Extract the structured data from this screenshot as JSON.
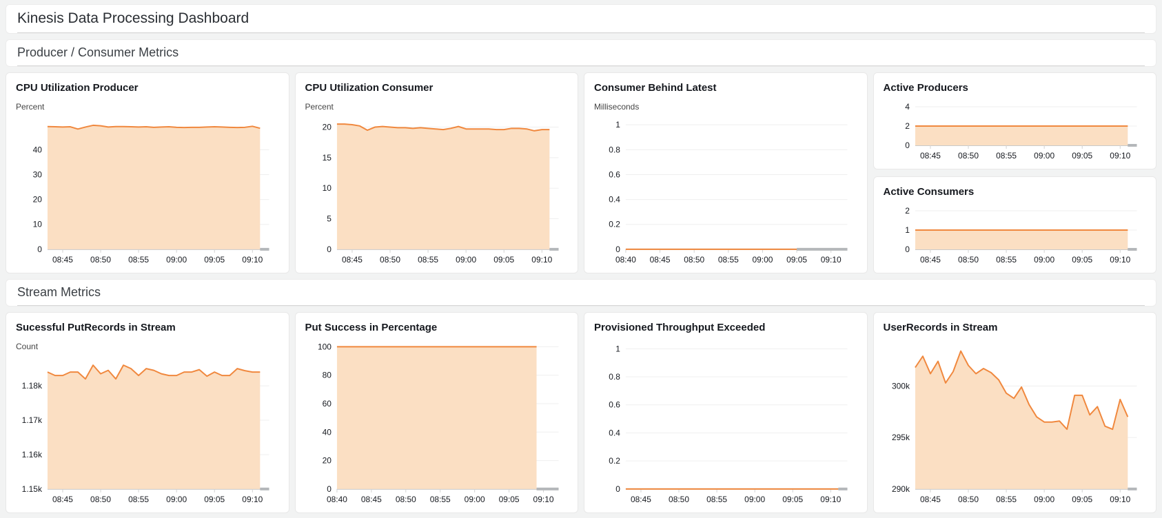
{
  "page": {
    "title": "Kinesis Data Processing Dashboard"
  },
  "sections": {
    "producer_consumer": "Producer / Consumer Metrics",
    "stream": "Stream Metrics"
  },
  "colors": {
    "line": "#f0883e",
    "fill": "#fbdfc3",
    "grid": "#efefef",
    "baseline": "#c9c9c9",
    "axis_end_stub": "#b4b7ba",
    "tick_mark": "#d2d2d2",
    "tick_text": "#16191f"
  },
  "chart_data": [
    {
      "id": "cpu-utilization-producer",
      "type": "area",
      "title": "CPU Utilization Producer",
      "unit": "Percent",
      "ylim": [
        0,
        52.5
      ],
      "yticks": [
        {
          "v": 0,
          "label": "0"
        },
        {
          "v": 10,
          "label": "10"
        },
        {
          "v": 20,
          "label": "20"
        },
        {
          "v": 30,
          "label": "30"
        },
        {
          "v": 40,
          "label": "40"
        }
      ],
      "xlim": [
        43,
        72.2
      ],
      "xticks": [
        {
          "m": 45,
          "label": "08:45"
        },
        {
          "m": 50,
          "label": "08:50"
        },
        {
          "m": 55,
          "label": "08:55"
        },
        {
          "m": 60,
          "label": "09:00"
        },
        {
          "m": 65,
          "label": "09:05"
        },
        {
          "m": 70,
          "label": "09:10"
        }
      ],
      "x_start_min": 43,
      "x_step_min": 1,
      "values": [
        49.3,
        49.2,
        49.1,
        49.2,
        48.3,
        49.1,
        49.8,
        49.6,
        49.1,
        49.3,
        49.3,
        49.2,
        49.1,
        49.2,
        49.0,
        49.1,
        49.2,
        49.0,
        48.9,
        49.0,
        49.0,
        49.1,
        49.2,
        49.1,
        49.0,
        48.9,
        49.0,
        49.4,
        48.6
      ]
    },
    {
      "id": "cpu-utilization-consumer",
      "type": "area",
      "title": "CPU Utilization Consumer",
      "unit": "Percent",
      "ylim": [
        0,
        21.4
      ],
      "yticks": [
        {
          "v": 0,
          "label": "0"
        },
        {
          "v": 5,
          "label": "5"
        },
        {
          "v": 10,
          "label": "10"
        },
        {
          "v": 15,
          "label": "15"
        },
        {
          "v": 20,
          "label": "20"
        }
      ],
      "xlim": [
        43,
        72.2
      ],
      "xticks": [
        {
          "m": 45,
          "label": "08:45"
        },
        {
          "m": 50,
          "label": "08:50"
        },
        {
          "m": 55,
          "label": "08:55"
        },
        {
          "m": 60,
          "label": "09:00"
        },
        {
          "m": 65,
          "label": "09:05"
        },
        {
          "m": 70,
          "label": "09:10"
        }
      ],
      "x_start_min": 43,
      "x_step_min": 1,
      "values": [
        20.5,
        20.5,
        20.4,
        20.2,
        19.5,
        20.0,
        20.1,
        20.0,
        19.9,
        19.9,
        19.8,
        19.9,
        19.8,
        19.7,
        19.6,
        19.8,
        20.1,
        19.7,
        19.7,
        19.7,
        19.7,
        19.6,
        19.6,
        19.8,
        19.8,
        19.7,
        19.4,
        19.6,
        19.6
      ]
    },
    {
      "id": "consumer-behind-latest",
      "type": "area",
      "title": "Consumer Behind Latest",
      "unit": "Milliseconds",
      "ylim": [
        0,
        1.05
      ],
      "yticks": [
        {
          "v": 0,
          "label": "0"
        },
        {
          "v": 0.2,
          "label": "0.2"
        },
        {
          "v": 0.4,
          "label": "0.4"
        },
        {
          "v": 0.6,
          "label": "0.6"
        },
        {
          "v": 0.8,
          "label": "0.8"
        },
        {
          "v": 1,
          "label": "1"
        }
      ],
      "xlim": [
        40,
        72.4
      ],
      "xticks": [
        {
          "m": 40,
          "label": "08:40"
        },
        {
          "m": 45,
          "label": "08:45"
        },
        {
          "m": 50,
          "label": "08:50"
        },
        {
          "m": 55,
          "label": "08:55"
        },
        {
          "m": 60,
          "label": "09:00"
        },
        {
          "m": 65,
          "label": "09:05"
        },
        {
          "m": 70,
          "label": "09:10"
        }
      ],
      "x_start_min": 40,
      "x_step_min": 1,
      "values": [
        0,
        0,
        0,
        0,
        0,
        0,
        0,
        0,
        0,
        0,
        0,
        0,
        0,
        0,
        0,
        0,
        0,
        0,
        0,
        0,
        0,
        0,
        0,
        0,
        0,
        0
      ]
    },
    {
      "id": "active-producers",
      "type": "area",
      "title": "Active Producers",
      "ylim": [
        0,
        4.5
      ],
      "yticks": [
        {
          "v": 0,
          "label": "0"
        },
        {
          "v": 2,
          "label": "2"
        },
        {
          "v": 4,
          "label": "4"
        }
      ],
      "xlim": [
        43,
        72.2
      ],
      "xticks": [
        {
          "m": 45,
          "label": "08:45"
        },
        {
          "m": 50,
          "label": "08:50"
        },
        {
          "m": 55,
          "label": "08:55"
        },
        {
          "m": 60,
          "label": "09:00"
        },
        {
          "m": 65,
          "label": "09:05"
        },
        {
          "m": 70,
          "label": "09:10"
        }
      ],
      "x_start_min": 43,
      "x_step_min": 1,
      "values": [
        2,
        2,
        2,
        2,
        2,
        2,
        2,
        2,
        2,
        2,
        2,
        2,
        2,
        2,
        2,
        2,
        2,
        2,
        2,
        2,
        2,
        2,
        2,
        2,
        2,
        2,
        2,
        2,
        2
      ]
    },
    {
      "id": "active-consumers",
      "type": "area",
      "title": "Active Consumers",
      "ylim": [
        0,
        2.25
      ],
      "yticks": [
        {
          "v": 0,
          "label": "0"
        },
        {
          "v": 1,
          "label": "1"
        },
        {
          "v": 2,
          "label": "2"
        }
      ],
      "xlim": [
        43,
        72.2
      ],
      "xticks": [
        {
          "m": 45,
          "label": "08:45"
        },
        {
          "m": 50,
          "label": "08:50"
        },
        {
          "m": 55,
          "label": "08:55"
        },
        {
          "m": 60,
          "label": "09:00"
        },
        {
          "m": 65,
          "label": "09:05"
        },
        {
          "m": 70,
          "label": "09:10"
        }
      ],
      "x_start_min": 43,
      "x_step_min": 1,
      "values": [
        1,
        1,
        1,
        1,
        1,
        1,
        1,
        1,
        1,
        1,
        1,
        1,
        1,
        1,
        1,
        1,
        1,
        1,
        1,
        1,
        1,
        1,
        1,
        1,
        1,
        1,
        1,
        1,
        1
      ]
    },
    {
      "id": "successful-putrecords-in-stream",
      "type": "area",
      "title": "Sucessful PutRecords in Stream",
      "unit": "Count",
      "ylim": [
        1150,
        1188
      ],
      "yticks": [
        {
          "v": 1150,
          "label": "1.15k"
        },
        {
          "v": 1160,
          "label": "1.16k"
        },
        {
          "v": 1170,
          "label": "1.17k"
        },
        {
          "v": 1180,
          "label": "1.18k"
        }
      ],
      "xlim": [
        43,
        72.2
      ],
      "xticks": [
        {
          "m": 45,
          "label": "08:45"
        },
        {
          "m": 50,
          "label": "08:50"
        },
        {
          "m": 55,
          "label": "08:55"
        },
        {
          "m": 60,
          "label": "09:00"
        },
        {
          "m": 65,
          "label": "09:05"
        },
        {
          "m": 70,
          "label": "09:10"
        }
      ],
      "x_start_min": 43,
      "x_step_min": 1,
      "values": [
        1184,
        1183,
        1183,
        1184,
        1184,
        1182,
        1186,
        1183.5,
        1184.5,
        1182,
        1186,
        1185,
        1183,
        1185,
        1184.5,
        1183.5,
        1183,
        1183,
        1184,
        1184,
        1184.7,
        1182.8,
        1184,
        1183,
        1183,
        1185,
        1184.4,
        1184,
        1184
      ]
    },
    {
      "id": "put-success-in-percentage",
      "type": "area",
      "title": "Put Success in Percentage",
      "ylim": [
        0,
        103.5
      ],
      "yticks": [
        {
          "v": 0,
          "label": "0"
        },
        {
          "v": 20,
          "label": "20"
        },
        {
          "v": 40,
          "label": "40"
        },
        {
          "v": 60,
          "label": "60"
        },
        {
          "v": 80,
          "label": "80"
        },
        {
          "v": 100,
          "label": "100"
        }
      ],
      "xlim": [
        40,
        72.2
      ],
      "xticks": [
        {
          "m": 40,
          "label": "08:40"
        },
        {
          "m": 45,
          "label": "08:45"
        },
        {
          "m": 50,
          "label": "08:50"
        },
        {
          "m": 55,
          "label": "08:55"
        },
        {
          "m": 60,
          "label": "09:00"
        },
        {
          "m": 65,
          "label": "09:05"
        },
        {
          "m": 70,
          "label": "09:10"
        }
      ],
      "x_start_min": 40,
      "x_step_min": 1,
      "values": [
        100,
        100,
        100,
        100,
        100,
        100,
        100,
        100,
        100,
        100,
        100,
        100,
        100,
        100,
        100,
        100,
        100,
        100,
        100,
        100,
        100,
        100,
        100,
        100,
        100,
        100,
        100,
        100,
        100,
        100
      ]
    },
    {
      "id": "provisioned-throughput-exceeded",
      "type": "area",
      "title": "Provisioned Throughput Exceeded",
      "ylim": [
        0,
        1.05
      ],
      "yticks": [
        {
          "v": 0,
          "label": "0"
        },
        {
          "v": 0.2,
          "label": "0.2"
        },
        {
          "v": 0.4,
          "label": "0.4"
        },
        {
          "v": 0.6,
          "label": "0.6"
        },
        {
          "v": 0.8,
          "label": "0.8"
        },
        {
          "v": 1,
          "label": "1"
        }
      ],
      "xlim": [
        43,
        72.2
      ],
      "xticks": [
        {
          "m": 45,
          "label": "08:45"
        },
        {
          "m": 50,
          "label": "08:50"
        },
        {
          "m": 55,
          "label": "08:55"
        },
        {
          "m": 60,
          "label": "09:00"
        },
        {
          "m": 65,
          "label": "09:05"
        },
        {
          "m": 70,
          "label": "09:10"
        }
      ],
      "x_start_min": 43,
      "x_step_min": 1,
      "values": [
        0,
        0,
        0,
        0,
        0,
        0,
        0,
        0,
        0,
        0,
        0,
        0,
        0,
        0,
        0,
        0,
        0,
        0,
        0,
        0,
        0,
        0,
        0,
        0,
        0,
        0,
        0,
        0,
        0
      ]
    },
    {
      "id": "userrecords-in-stream",
      "type": "area",
      "title": "UserRecords in Stream",
      "ylim": [
        290000,
        304300
      ],
      "yticks": [
        {
          "v": 290000,
          "label": "290k"
        },
        {
          "v": 295000,
          "label": "295k"
        },
        {
          "v": 300000,
          "label": "300k"
        }
      ],
      "xlim": [
        43,
        72.2
      ],
      "xticks": [
        {
          "m": 45,
          "label": "08:45"
        },
        {
          "m": 50,
          "label": "08:50"
        },
        {
          "m": 55,
          "label": "08:55"
        },
        {
          "m": 60,
          "label": "09:00"
        },
        {
          "m": 65,
          "label": "09:05"
        },
        {
          "m": 70,
          "label": "09:10"
        }
      ],
      "x_start_min": 43,
      "x_step_min": 1,
      "values": [
        301800,
        302900,
        301200,
        302400,
        300300,
        301400,
        303400,
        302000,
        301200,
        301700,
        301300,
        300600,
        299300,
        298800,
        299900,
        298200,
        297000,
        296500,
        296500,
        296600,
        295800,
        299100,
        299100,
        297200,
        298000,
        296100,
        295800,
        298700,
        297000
      ]
    }
  ]
}
